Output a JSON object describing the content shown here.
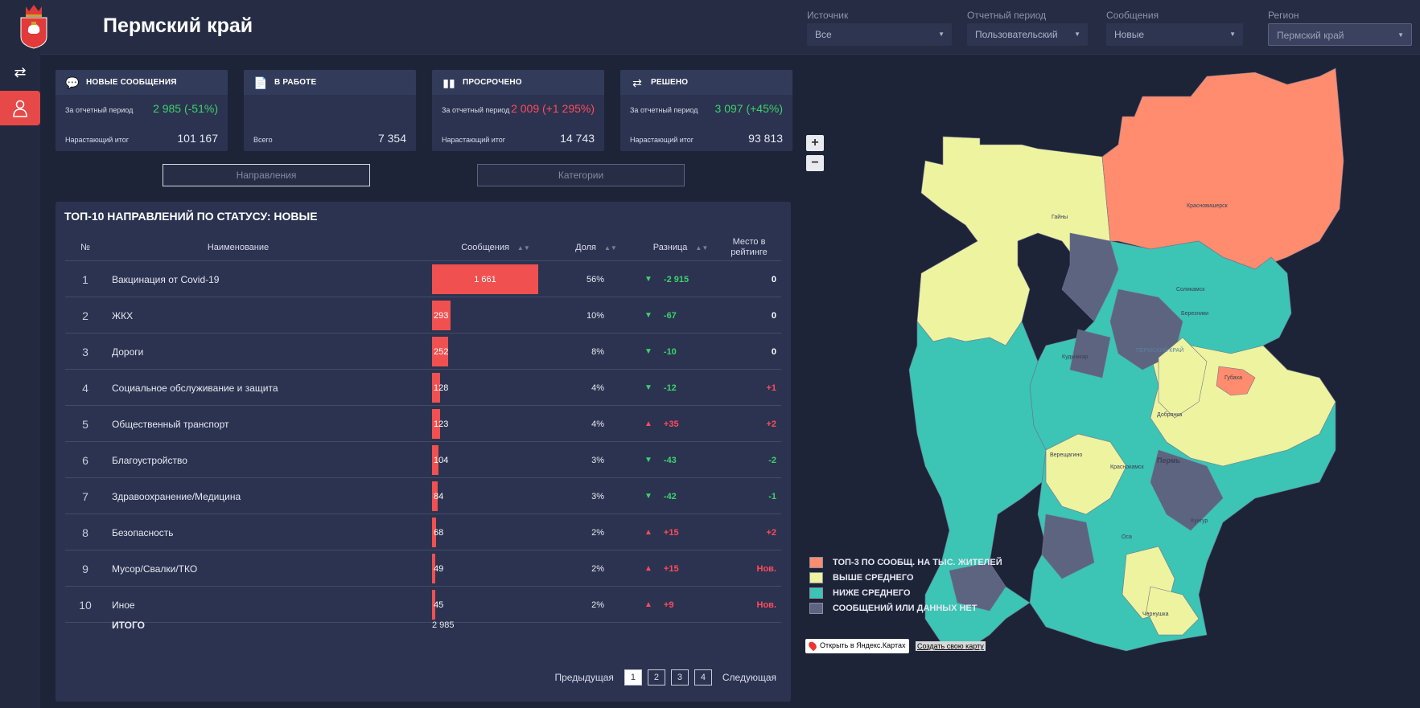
{
  "header": {
    "title": "Пермский край"
  },
  "filters": [
    {
      "label": "Источник",
      "value": "Все"
    },
    {
      "label": "Отчетный период",
      "value": "Пользовательский"
    },
    {
      "label": "Сообщения",
      "value": "Новые"
    },
    {
      "label": "Регион",
      "value": "Пермский край"
    }
  ],
  "cards": [
    {
      "title": "НОВЫЕ СООБЩЕНИЯ",
      "row1_label": "За отчетный период",
      "row1_value": "2 985 (-51%)",
      "row2_label": "Нарастающий итог",
      "row2_value": "101 167"
    },
    {
      "title": "В РАБОТЕ",
      "row2_label": "Всего",
      "row2_value": "7 354"
    },
    {
      "title": "ПРОСРОЧЕНО",
      "row1_label": "За отчетный период",
      "row1_value": "2 009 (+1 295%)",
      "row2_label": "Нарастающий итог",
      "row2_value": "14 743"
    },
    {
      "title": "РЕШЕНО",
      "row1_label": "За отчетный период",
      "row1_value": "3 097 (+45%)",
      "row2_label": "Нарастающий итог",
      "row2_value": "93 813"
    }
  ],
  "toggles": {
    "directions": "Направления",
    "categories": "Категории"
  },
  "table": {
    "title": "ТОП-10 НАПРАВЛЕНИЙ ПО СТАТУСУ: НОВЫЕ",
    "headers": {
      "num": "№",
      "name": "Наименование",
      "messages": "Сообщения",
      "share": "Доля",
      "diff": "Разница",
      "rank": "Место в рейтинге"
    },
    "max_value": 1661,
    "rows": [
      {
        "num": "1",
        "name": "Вакцинация от Covid-19",
        "messages": 1661,
        "messages_text": "1 661",
        "share": "56%",
        "dir": "down",
        "diff": "-2 915",
        "rank": "0",
        "rank_color": "#ffffff"
      },
      {
        "num": "2",
        "name": "ЖКХ",
        "messages": 293,
        "messages_text": "293",
        "share": "10%",
        "dir": "down",
        "diff": "-67",
        "rank": "0",
        "rank_color": "#ffffff"
      },
      {
        "num": "3",
        "name": "Дороги",
        "messages": 252,
        "messages_text": "252",
        "share": "8%",
        "dir": "down",
        "diff": "-10",
        "rank": "0",
        "rank_color": "#ffffff"
      },
      {
        "num": "4",
        "name": "Социальное обслуживание и защита",
        "messages": 128,
        "messages_text": "128",
        "share": "4%",
        "dir": "down",
        "diff": "-12",
        "rank": "+1",
        "rank_color": "#ff4b5c"
      },
      {
        "num": "5",
        "name": "Общественный транспорт",
        "messages": 123,
        "messages_text": "123",
        "share": "4%",
        "dir": "up",
        "diff": "+35",
        "rank": "+2",
        "rank_color": "#ff4b5c"
      },
      {
        "num": "6",
        "name": "Благоустройство",
        "messages": 104,
        "messages_text": "104",
        "share": "3%",
        "dir": "down",
        "diff": "-43",
        "rank": "-2",
        "rank_color": "#3ed26b"
      },
      {
        "num": "7",
        "name": "Здравоохранение/Медицина",
        "messages": 84,
        "messages_text": "84",
        "share": "3%",
        "dir": "down",
        "diff": "-42",
        "rank": "-1",
        "rank_color": "#3ed26b"
      },
      {
        "num": "8",
        "name": "Безопасность",
        "messages": 68,
        "messages_text": "68",
        "share": "2%",
        "dir": "up",
        "diff": "+15",
        "rank": "+2",
        "rank_color": "#ff4b5c"
      },
      {
        "num": "9",
        "name": "Мусор/Свалки/ТКО",
        "messages": 49,
        "messages_text": "49",
        "share": "2%",
        "dir": "up",
        "diff": "+15",
        "rank": "Нов.",
        "rank_color": "#ff4b5c"
      },
      {
        "num": "10",
        "name": "Иное",
        "messages": 45,
        "messages_text": "45",
        "share": "2%",
        "dir": "up",
        "diff": "+9",
        "rank": "Нов.",
        "rank_color": "#ff4b5c"
      }
    ],
    "total_label": "ИТОГО",
    "total_value": "2 985"
  },
  "pager": {
    "prev": "Предыдущая",
    "next": "Следующая",
    "pages": [
      "1",
      "2",
      "3",
      "4"
    ],
    "current": "1"
  },
  "map": {
    "zoom_in": "+",
    "zoom_out": "−",
    "legend": [
      {
        "label": "ТОП-3 ПО СООБЩ. НА ТЫС. ЖИТЕЛЕЙ",
        "color": "#ff8c6e"
      },
      {
        "label": "ВЫШЕ СРЕДНЕГО",
        "color": "#eef3a0"
      },
      {
        "label": "НИЖЕ СРЕДНЕГО",
        "color": "#3cc4b4"
      },
      {
        "label": "СООБЩЕНИЙ ИЛИ ДАННЫХ НЕТ",
        "color": "#5d6480"
      }
    ],
    "place_labels": [
      "Гайны",
      "Красновишерск",
      "Соликамск",
      "Березники",
      "ПЕРМСКИЙ КРАЙ",
      "Кудымкар",
      "Губаха",
      "Добрянка",
      "Верещагино",
      "Пермь",
      "Краснокамск",
      "Кунгур",
      "Оса",
      "Чернушка"
    ],
    "open_ymaps": "Открыть в Яндекс.Картах",
    "create_map": "Создать свою карту"
  },
  "colors": {
    "accent": "#e74848",
    "panel": "#2b3350",
    "up_red": "#ff4b5c",
    "down_green": "#3ed26b"
  }
}
